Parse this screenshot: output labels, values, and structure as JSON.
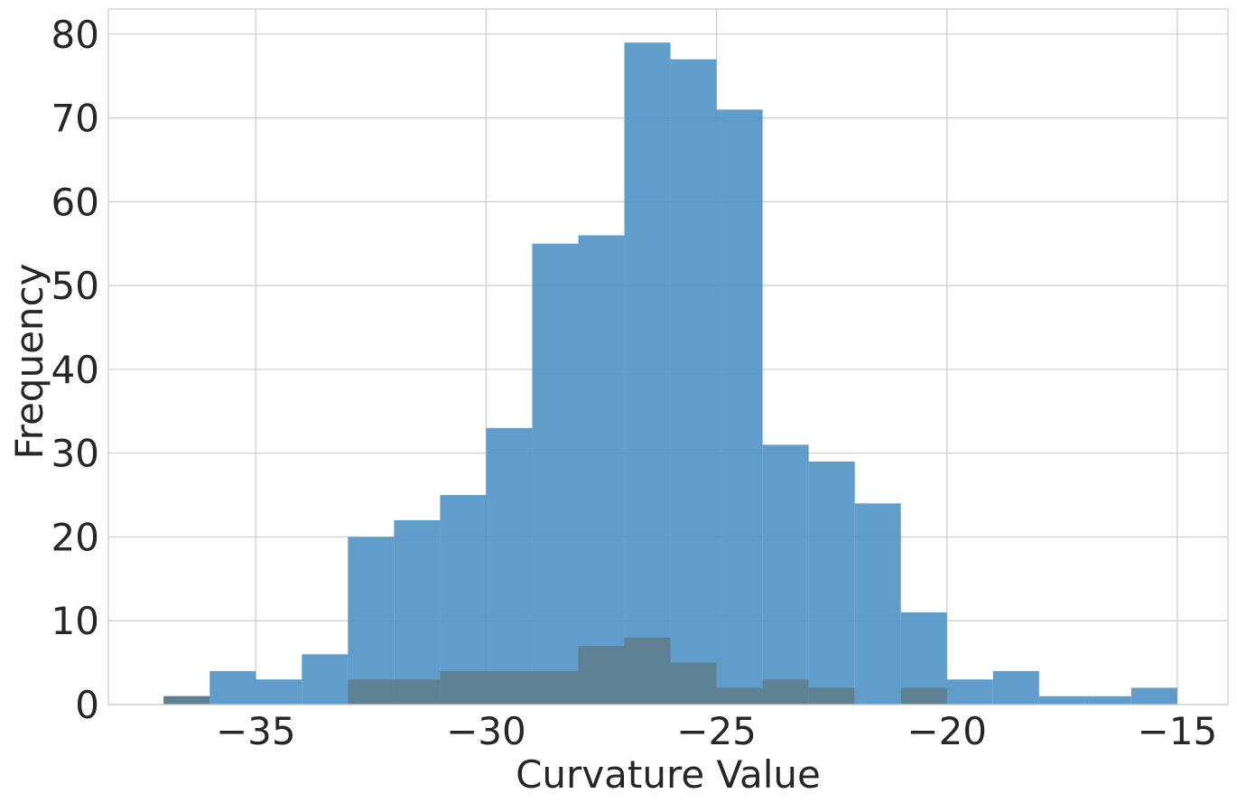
{
  "chart_data": {
    "type": "bar",
    "title": "",
    "xlabel": "Curvature Value",
    "ylabel": "Frequency",
    "xlim": [
      -38.2,
      -13.9
    ],
    "ylim": [
      0,
      83
    ],
    "xticks": [
      -35,
      -30,
      -25,
      -20,
      -15
    ],
    "xtick_labels": [
      "−35",
      "−30",
      "−25",
      "−20",
      "−15"
    ],
    "yticks": [
      0,
      10,
      20,
      30,
      40,
      50,
      60,
      70,
      80
    ],
    "ytick_labels": [
      "0",
      "10",
      "20",
      "30",
      "40",
      "50",
      "60",
      "70",
      "80"
    ],
    "grid": true,
    "legend": false,
    "series": [
      {
        "color": "#4a90c4",
        "bins": [
          [
            -37.0,
            -36.0,
            1
          ],
          [
            -36.0,
            -35.0,
            4
          ],
          [
            -35.0,
            -34.0,
            3
          ],
          [
            -34.0,
            -33.0,
            6
          ],
          [
            -33.0,
            -32.0,
            20
          ],
          [
            -32.0,
            -31.0,
            22
          ],
          [
            -31.0,
            -30.0,
            25
          ],
          [
            -30.0,
            -29.0,
            33
          ],
          [
            -29.0,
            -28.0,
            55
          ],
          [
            -28.0,
            -27.0,
            56
          ],
          [
            -27.0,
            -26.0,
            79
          ],
          [
            -26.0,
            -25.0,
            77
          ],
          [
            -25.0,
            -24.0,
            71
          ],
          [
            -24.0,
            -23.0,
            31
          ],
          [
            -23.0,
            -22.0,
            29
          ],
          [
            -22.0,
            -21.0,
            24
          ],
          [
            -21.0,
            -20.0,
            11
          ],
          [
            -20.0,
            -19.0,
            3
          ],
          [
            -19.0,
            -18.0,
            4
          ],
          [
            -18.0,
            -17.0,
            1
          ],
          [
            -17.0,
            -16.0,
            1
          ],
          [
            -16.0,
            -15.0,
            2
          ]
        ]
      },
      {
        "color": "#607f8f",
        "bins": [
          [
            -37.0,
            -36.0,
            1
          ],
          [
            -33.0,
            -32.0,
            3
          ],
          [
            -32.0,
            -31.0,
            3
          ],
          [
            -31.0,
            -30.0,
            4
          ],
          [
            -30.0,
            -29.0,
            4
          ],
          [
            -29.0,
            -28.0,
            4
          ],
          [
            -28.0,
            -27.0,
            7
          ],
          [
            -27.0,
            -26.0,
            8
          ],
          [
            -26.0,
            -25.0,
            5
          ],
          [
            -25.0,
            -24.0,
            2
          ],
          [
            -24.0,
            -23.0,
            3
          ],
          [
            -23.0,
            -22.0,
            2
          ],
          [
            -21.0,
            -20.0,
            2
          ]
        ]
      }
    ]
  }
}
